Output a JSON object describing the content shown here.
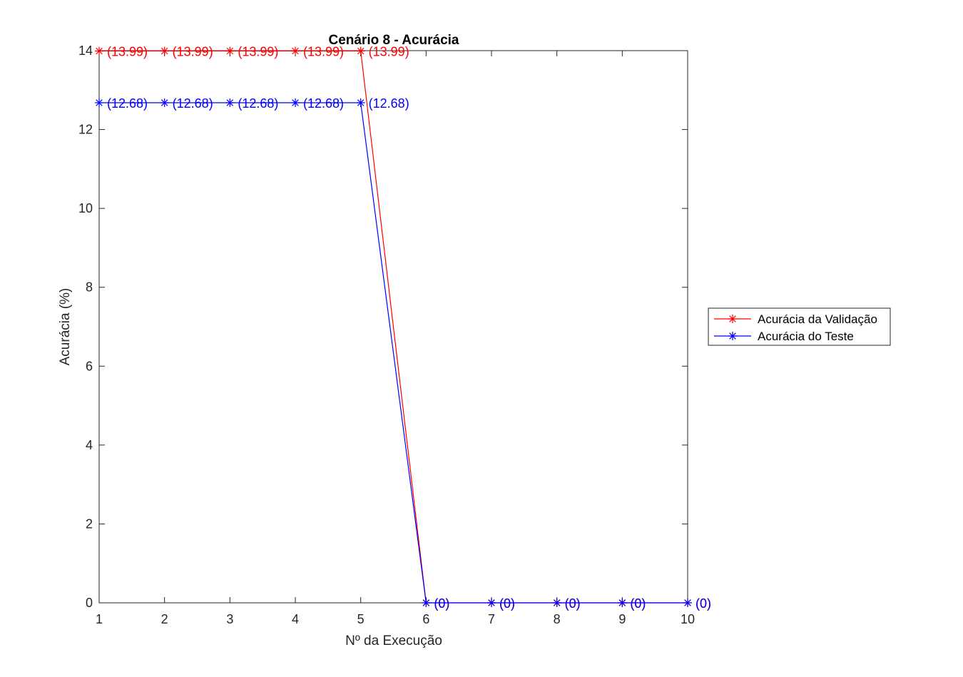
{
  "chart_data": {
    "type": "line",
    "title": "Cenário 8 - Acurácia",
    "xlabel": "Nº da Execução",
    "ylabel": "Acurácia (%)",
    "xlim": [
      1,
      10
    ],
    "ylim": [
      0,
      14
    ],
    "x_ticks": [
      "1",
      "2",
      "3",
      "4",
      "5",
      "6",
      "7",
      "8",
      "9",
      "10"
    ],
    "y_ticks": [
      "0",
      "2",
      "4",
      "6",
      "8",
      "10",
      "12",
      "14"
    ],
    "grid": false,
    "legend_position": "outside-right",
    "x": [
      1,
      2,
      3,
      4,
      5,
      6,
      7,
      8,
      9,
      10
    ],
    "series": [
      {
        "name": "Acurácia da Validação",
        "color": "#ff0000",
        "marker": "asterisk",
        "values": [
          13.99,
          13.99,
          13.99,
          13.99,
          13.99,
          0,
          0,
          0,
          0,
          0
        ],
        "labels": [
          "(13.99)",
          "(13.99)",
          "(13.99)",
          "(13.99)",
          "(13.99)",
          "(0)",
          "(0)",
          "(0)",
          "(0)",
          "(0)"
        ]
      },
      {
        "name": "Acurácia do Teste",
        "color": "#0000ff",
        "marker": "asterisk",
        "values": [
          12.68,
          12.68,
          12.68,
          12.68,
          12.68,
          0,
          0,
          0,
          0,
          0
        ],
        "labels": [
          "(12.68)",
          "(12.68)",
          "(12.68)",
          "(12.68)",
          "(12.68)",
          "(0)",
          "(0)",
          "(0)",
          "(0)",
          "(0)"
        ]
      }
    ]
  }
}
